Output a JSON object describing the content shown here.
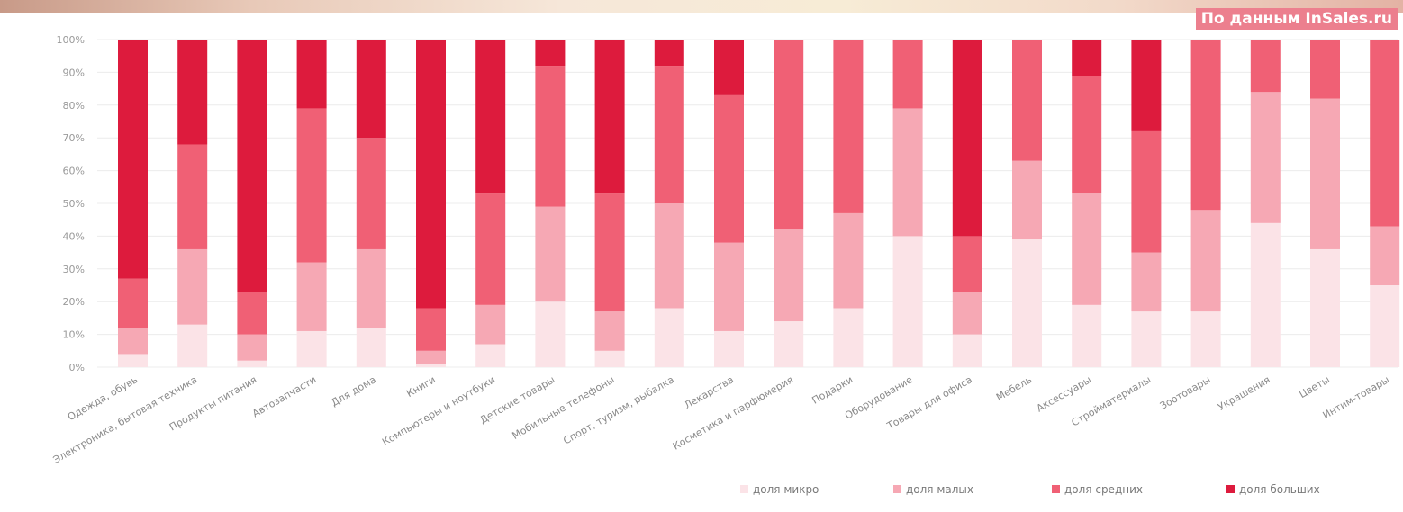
{
  "source_label": "По данным InSales.ru",
  "colors": {
    "micro": "#fbe3e7",
    "small": "#f6a8b4",
    "medium": "#f06075",
    "large": "#dd1b3d"
  },
  "chart_data": {
    "type": "bar",
    "stacked": true,
    "normalized": true,
    "ylim": [
      0,
      100
    ],
    "yticks": [
      "0%",
      "10%",
      "20%",
      "30%",
      "40%",
      "50%",
      "60%",
      "70%",
      "80%",
      "90%",
      "100%"
    ],
    "grid": true,
    "legend_position": "bottom-right",
    "categories": [
      "Одежда, обувь",
      "Электроника, бытовая техника",
      "Продукты питания",
      "Автозапчасти",
      "Для дома",
      "Книги",
      "Компьютеры и ноутбуки",
      "Детские товары",
      "Мобильные телефоны",
      "Спорт, туризм, рыбалка",
      "Лекарства",
      "Косметика и парфюмерия",
      "Подарки",
      "Оборудование",
      "Товары для офиса",
      "Мебель",
      "Аксессуары",
      "Стройматериалы",
      "Зоотовары",
      "Украшения",
      "Цветы",
      "Интим-товары"
    ],
    "series": [
      {
        "name": "доля микро",
        "color_key": "micro",
        "values": [
          4,
          13,
          2,
          11,
          12,
          1,
          7,
          20,
          5,
          18,
          11,
          14,
          18,
          40,
          10,
          39,
          19,
          17,
          17,
          44,
          36,
          25
        ]
      },
      {
        "name": "доля малых",
        "color_key": "small",
        "values": [
          8,
          23,
          8,
          21,
          24,
          4,
          12,
          29,
          12,
          32,
          27,
          28,
          29,
          39,
          13,
          24,
          34,
          18,
          31,
          40,
          46,
          18
        ]
      },
      {
        "name": "доля средних",
        "color_key": "medium",
        "values": [
          15,
          32,
          13,
          47,
          34,
          13,
          34,
          43,
          36,
          42,
          45,
          58,
          53,
          21,
          17,
          37,
          36,
          37,
          52,
          16,
          18,
          57
        ]
      },
      {
        "name": "доля больших",
        "color_key": "large",
        "values": [
          73,
          32,
          77,
          21,
          30,
          82,
          47,
          8,
          47,
          8,
          17,
          0,
          0,
          0,
          60,
          0,
          11,
          28,
          0,
          0,
          0,
          0
        ]
      }
    ]
  }
}
